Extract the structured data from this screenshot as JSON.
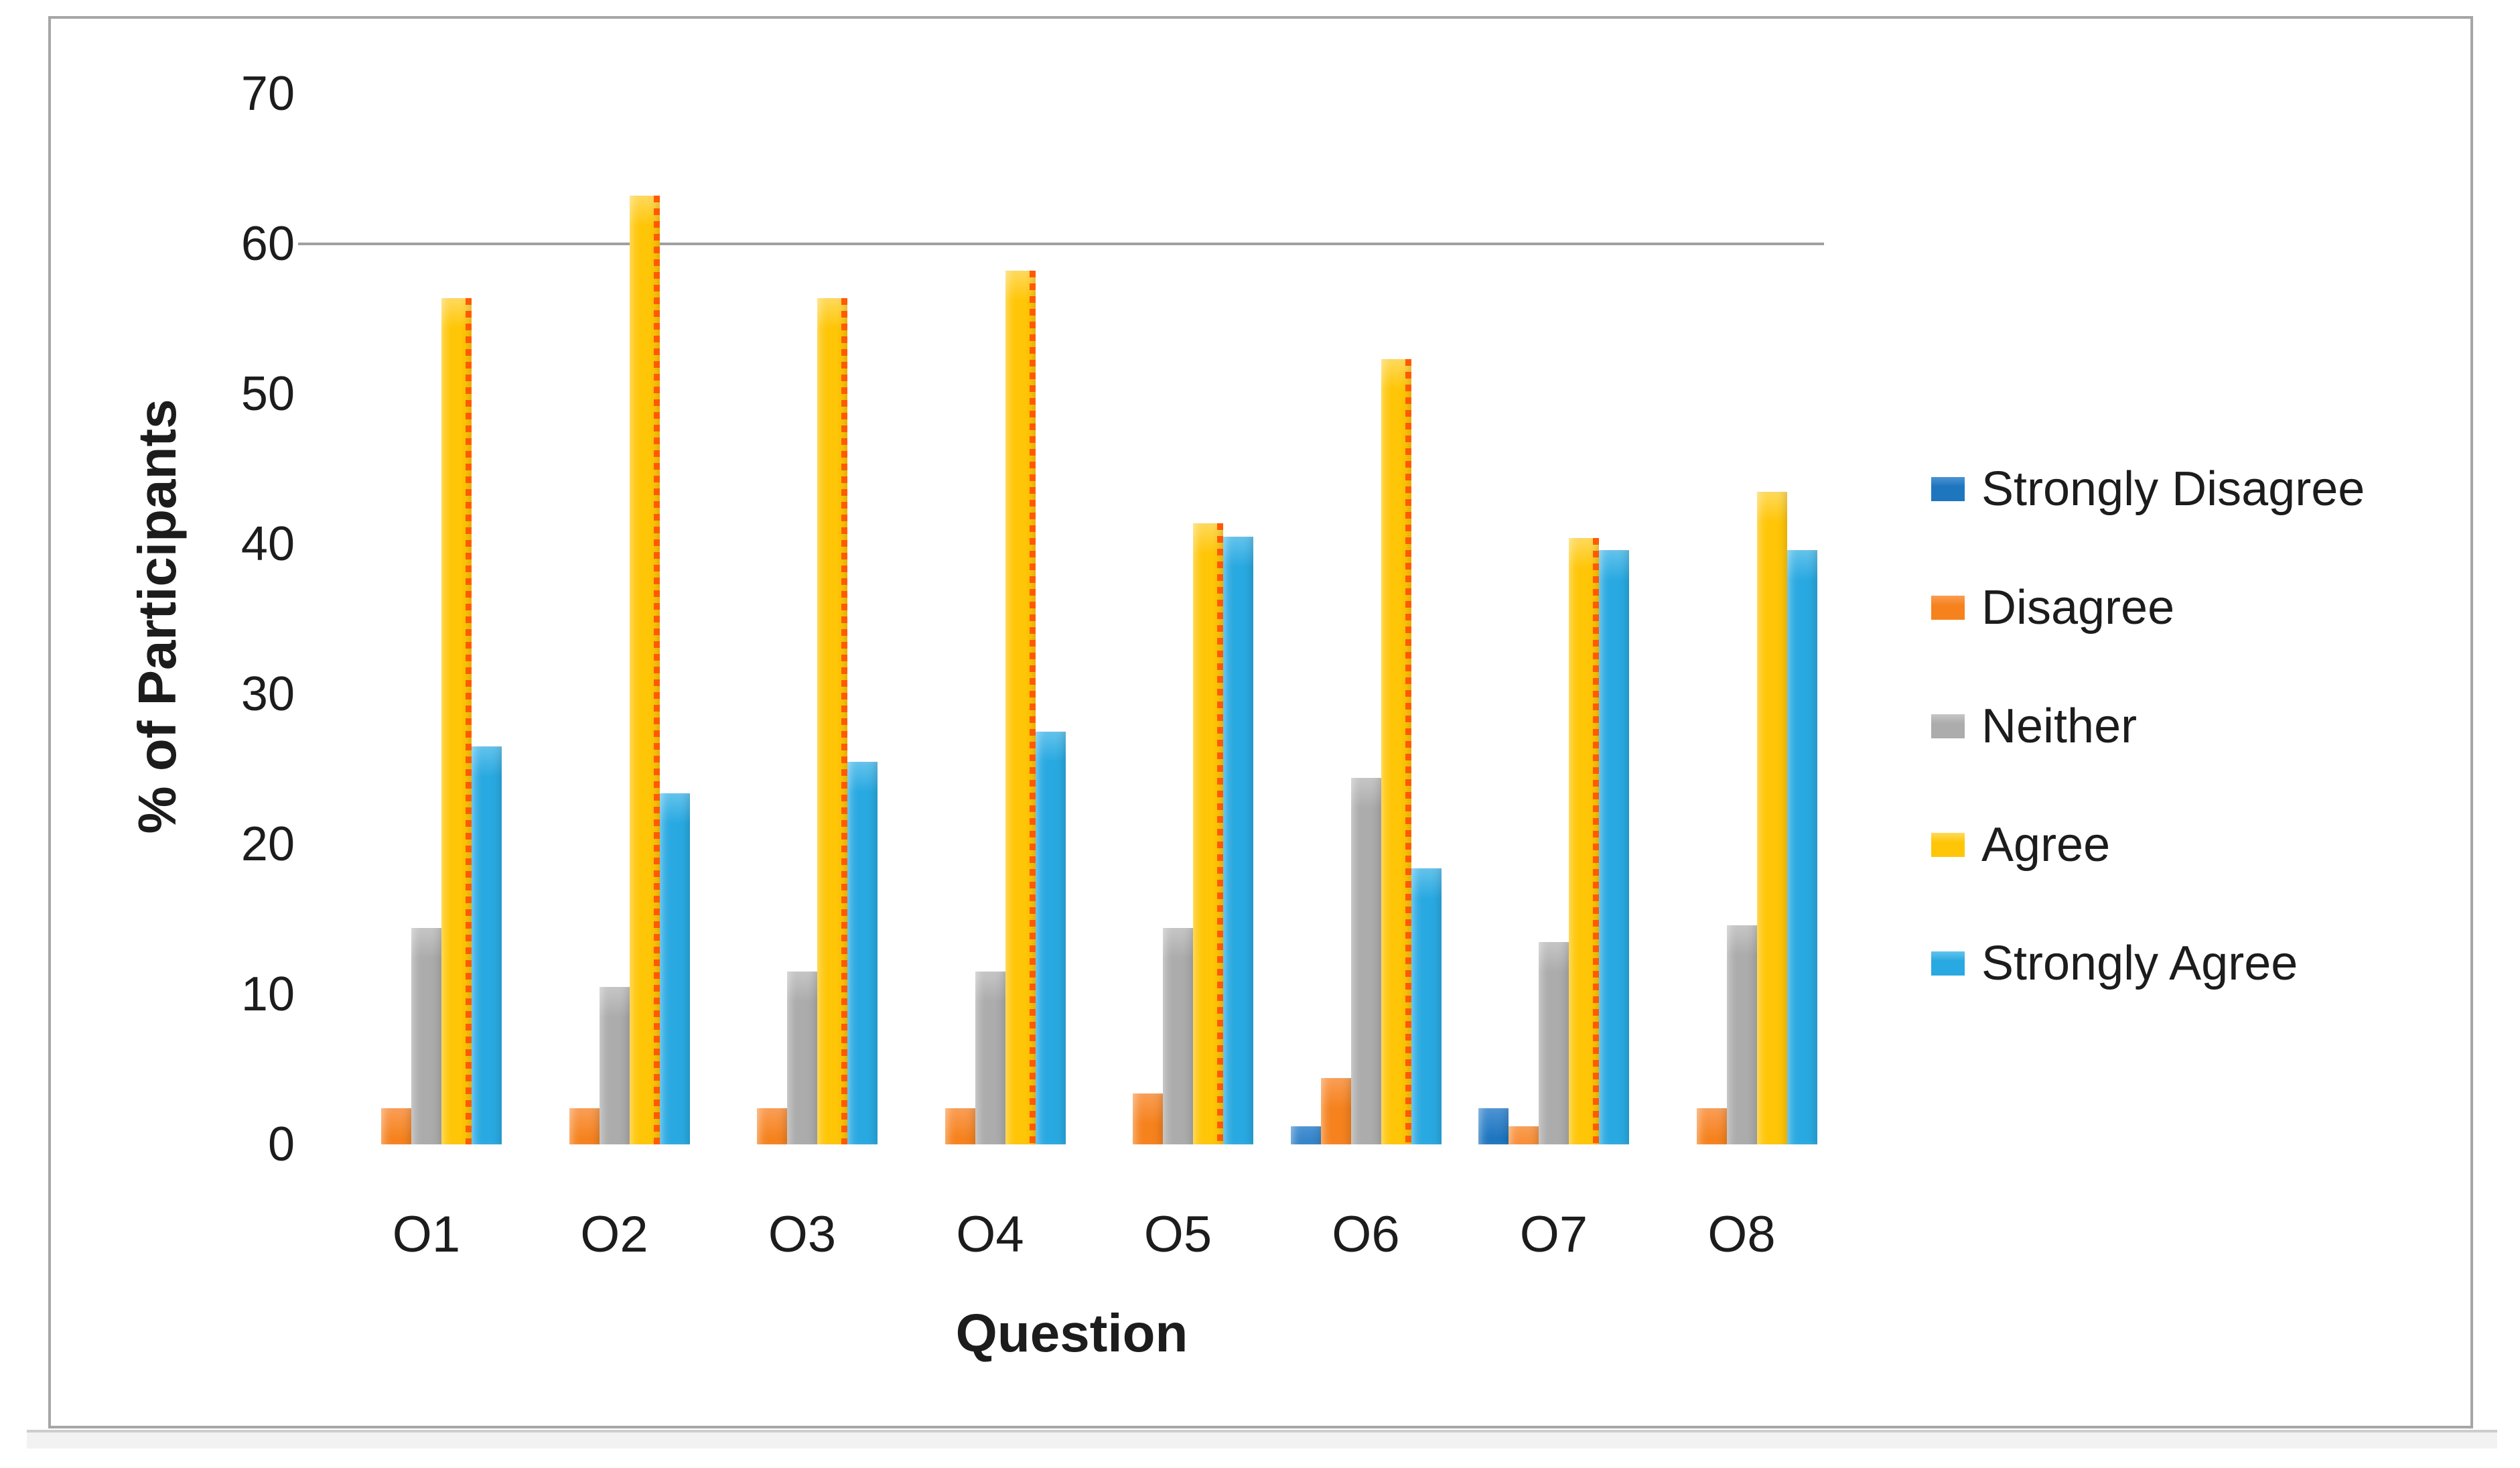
{
  "chart_data": {
    "type": "bar",
    "title": "",
    "xlabel": "Question",
    "ylabel": "% of Participants",
    "categories": [
      "O1",
      "O2",
      "O3",
      "O4",
      "O5",
      "O6",
      "O7",
      "O8"
    ],
    "series": [
      {
        "name": "Strongly Disagree",
        "color": "#1E76BF",
        "color_light": "#4C93D4",
        "values": [
          0,
          0,
          0,
          0,
          0,
          1.2,
          2.4,
          0
        ]
      },
      {
        "name": "Disagree",
        "color": "#F6821E",
        "color_light": "#FA9E55",
        "values": [
          2.4,
          2.4,
          2.4,
          2.4,
          3.4,
          4.4,
          1.2,
          2.4
        ]
      },
      {
        "name": "Neither",
        "color": "#ACACAC",
        "color_light": "#C6C6C6",
        "values": [
          14.4,
          10.5,
          11.5,
          11.5,
          14.4,
          24.4,
          13.5,
          14.6
        ]
      },
      {
        "name": "Agree",
        "color": "#FFC607",
        "color_light": "#FFDA5C",
        "values": [
          56.4,
          63.2,
          56.4,
          58.2,
          41.4,
          52.3,
          40.4,
          43.5
        ]
      },
      {
        "name": "Strongly Agree",
        "color": "#29A9E1",
        "color_light": "#63C3EC",
        "values": [
          26.5,
          23.4,
          25.5,
          27.5,
          40.5,
          18.4,
          39.6,
          39.6
        ]
      }
    ],
    "ylim": [
      0,
      70
    ],
    "yticks": [
      "0",
      "10",
      "20",
      "30",
      "40",
      "50",
      "60",
      "70"
    ],
    "gridline_at": 60,
    "legend_position": "right",
    "agree_dotted_right_edge": [
      true,
      true,
      true,
      true,
      true,
      true,
      true,
      false
    ]
  }
}
